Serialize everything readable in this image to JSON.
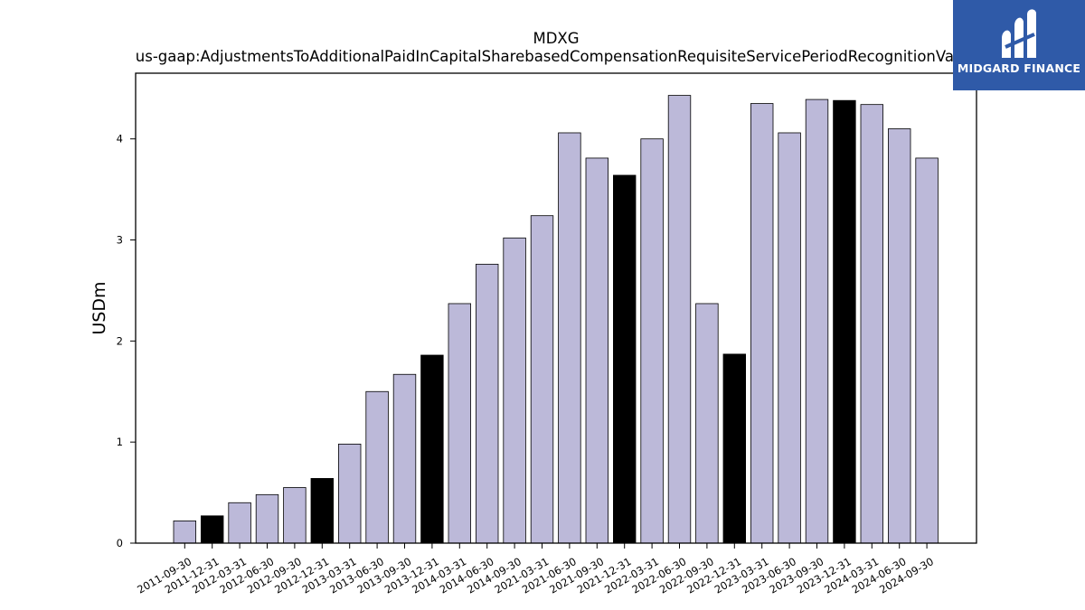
{
  "chart_data": {
    "type": "bar",
    "title": "MDXG",
    "subtitle": "us-gaap:AdjustmentsToAdditionalPaidInCapitalSharebasedCompensationRequisiteServicePeriodRecognitionValue",
    "ylabel": "USDm",
    "xlabel": "",
    "ylim": [
      0,
      4.65
    ],
    "yticks": [
      0,
      1,
      2,
      3,
      4
    ],
    "grid": false,
    "categories": [
      "2011-09-30",
      "2011-12-31",
      "2012-03-31",
      "2012-06-30",
      "2012-09-30",
      "2012-12-31",
      "2013-03-31",
      "2013-06-30",
      "2013-09-30",
      "2013-12-31",
      "2014-03-31",
      "2014-06-30",
      "2014-09-30",
      "2021-03-31",
      "2021-06-30",
      "2021-09-30",
      "2021-12-31",
      "2022-03-31",
      "2022-06-30",
      "2022-09-30",
      "2022-12-31",
      "2023-03-31",
      "2023-06-30",
      "2023-09-30",
      "2023-12-31",
      "2024-03-31",
      "2024-06-30",
      "2024-09-30"
    ],
    "values": [
      0.22,
      0.27,
      0.4,
      0.48,
      0.55,
      0.64,
      0.98,
      1.5,
      1.67,
      1.86,
      2.37,
      2.76,
      3.02,
      3.24,
      4.06,
      3.81,
      3.64,
      4.0,
      4.43,
      2.37,
      1.87,
      4.35,
      4.06,
      4.39,
      4.38,
      4.34,
      4.1,
      3.81
    ],
    "highlight": [
      false,
      true,
      false,
      false,
      false,
      true,
      false,
      false,
      false,
      true,
      false,
      false,
      false,
      false,
      false,
      false,
      true,
      false,
      false,
      false,
      true,
      false,
      false,
      false,
      true,
      false,
      false,
      false
    ],
    "colors": {
      "bar": "#bcb9d9",
      "highlight": "#000000",
      "edge": "#000000"
    }
  },
  "logo": {
    "text": "MIDGARD FINANCE",
    "background": "#2f5aa8"
  }
}
